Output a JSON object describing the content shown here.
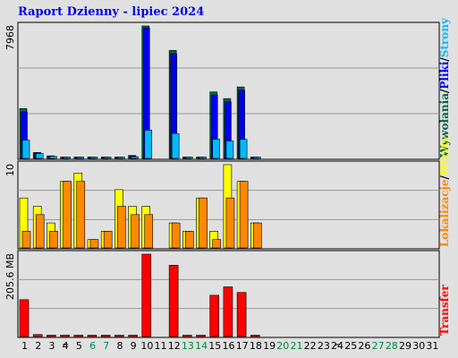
{
  "chart_data": {
    "type": "bar",
    "title": "Raport Dzienny -  lipiec 2024",
    "days": [
      "1",
      "2",
      "3",
      "4",
      "5",
      "6",
      "7",
      "8",
      "9",
      "10",
      "11",
      "12",
      "13",
      "14",
      "15",
      "16",
      "17",
      "18",
      "19",
      "20",
      "21",
      "22",
      "23",
      "24",
      "25",
      "26",
      "27",
      "28",
      "29",
      "30",
      "31"
    ],
    "weekend_days": [
      "6",
      "7",
      "13",
      "14",
      "20",
      "21",
      "27",
      "28"
    ],
    "highlight_days": [
      "4",
      "24"
    ],
    "panels": [
      {
        "name": "requests",
        "max_label": "7968",
        "ymax": 7968,
        "series": [
          {
            "name": "Wywołania",
            "color": "#006644",
            "values": [
              3000,
              350,
              150,
              80,
              80,
              80,
              80,
              80,
              180,
              7968,
              0,
              6500,
              80,
              80,
              4000,
              3600,
              4300,
              80,
              0,
              0,
              0,
              0,
              0,
              0,
              0,
              0,
              0,
              0,
              0,
              0,
              0
            ]
          },
          {
            "name": "Pliki",
            "color": "#0000ee",
            "values": [
              2800,
              350,
              150,
              80,
              80,
              80,
              80,
              80,
              150,
              7850,
              0,
              6300,
              80,
              80,
              3800,
              3400,
              4100,
              80,
              0,
              0,
              0,
              0,
              0,
              0,
              0,
              0,
              0,
              0,
              0,
              0,
              0
            ]
          },
          {
            "name": "Strony",
            "color": "#00bbff",
            "values": [
              1100,
              300,
              120,
              50,
              50,
              50,
              50,
              50,
              100,
              1700,
              0,
              1500,
              50,
              50,
              1150,
              1050,
              1150,
              50,
              0,
              0,
              0,
              0,
              0,
              0,
              0,
              0,
              0,
              0,
              0,
              0,
              0
            ]
          }
        ],
        "legend": [
          "Wywołania",
          "/",
          "Pliki",
          "/",
          "Strony"
        ],
        "legend_colors": [
          "#006644",
          "#000000",
          "#0000ee",
          "#000000",
          "#00bbff"
        ]
      },
      {
        "name": "visits",
        "max_label": "10",
        "ymax": 10,
        "series": [
          {
            "name": "Wizyty",
            "color": "#ffff00",
            "values": [
              6,
              5,
              3,
              8,
              9,
              1,
              2,
              7,
              5,
              5,
              0,
              3,
              2,
              6,
              2,
              10,
              8,
              3,
              0,
              0,
              0,
              0,
              0,
              0,
              0,
              0,
              0,
              0,
              0,
              0,
              0
            ]
          },
          {
            "name": "Lokalizacje",
            "color": "#ff8800",
            "values": [
              2,
              4,
              2,
              8,
              8,
              1,
              2,
              5,
              4,
              4,
              0,
              3,
              2,
              6,
              1,
              6,
              8,
              3,
              0,
              0,
              0,
              0,
              0,
              0,
              0,
              0,
              0,
              0,
              0,
              0,
              0
            ]
          }
        ],
        "legend": [
          "Lokalizacje",
          "/",
          "Wizyty"
        ],
        "legend_colors": [
          "#ff8800",
          "#000000",
          "#ffff00"
        ]
      },
      {
        "name": "transfer",
        "max_label": "205.6 MB",
        "ymax": 205.6,
        "series": [
          {
            "name": "Transfer",
            "color": "#ff0000",
            "values": [
              92,
              5,
              3,
              3,
              3,
              3,
              3,
              3,
              3,
              205.6,
              0,
              178,
              3,
              3,
              103,
              124,
              110,
              3,
              0,
              0,
              0,
              0,
              0,
              0,
              0,
              0,
              0,
              0,
              0,
              0,
              0
            ]
          }
        ],
        "legend": [
          "Transfer"
        ],
        "legend_colors": [
          "#ff0000"
        ]
      }
    ],
    "colors": {
      "weekend_label": "#008844",
      "highlight_label": "#000000",
      "default_label": "#000000",
      "gridline": "#999999",
      "background": "#e0e0e0"
    }
  }
}
